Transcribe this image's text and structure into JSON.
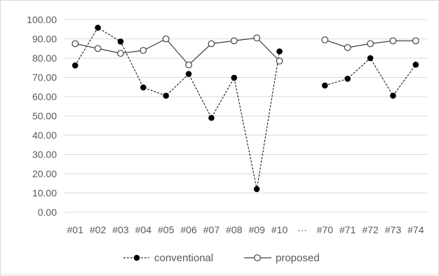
{
  "chart_data": {
    "type": "line",
    "title": "",
    "xlabel": "",
    "ylabel": "",
    "ylim": [
      0,
      100
    ],
    "y_ticks": [
      "100.00",
      "90.00",
      "80.00",
      "70.00",
      "60.00",
      "50.00",
      "40.00",
      "30.00",
      "20.00",
      "10.00",
      "0.00"
    ],
    "categories": [
      "#01",
      "#02",
      "#03",
      "#04",
      "#05",
      "#06",
      "#07",
      "#08",
      "#09",
      "#10",
      "···",
      "#70",
      "#71",
      "#72",
      "#73",
      "#74"
    ],
    "grid": true,
    "legend_position": "bottom",
    "series": [
      {
        "name": "conventional",
        "marker": "filled-circle",
        "line_style": "dashed",
        "color": "#000000",
        "values": [
          76.2,
          95.8,
          88.6,
          64.8,
          60.5,
          71.8,
          49.0,
          69.8,
          12.0,
          83.5,
          null,
          65.8,
          69.3,
          80.0,
          60.5,
          76.6
        ]
      },
      {
        "name": "proposed",
        "marker": "open-circle",
        "line_style": "solid",
        "color": "#404040",
        "values": [
          87.5,
          85.0,
          82.5,
          84.0,
          90.0,
          76.5,
          87.5,
          89.0,
          90.5,
          78.5,
          null,
          89.5,
          85.5,
          87.5,
          89.0,
          89.0
        ]
      }
    ]
  }
}
